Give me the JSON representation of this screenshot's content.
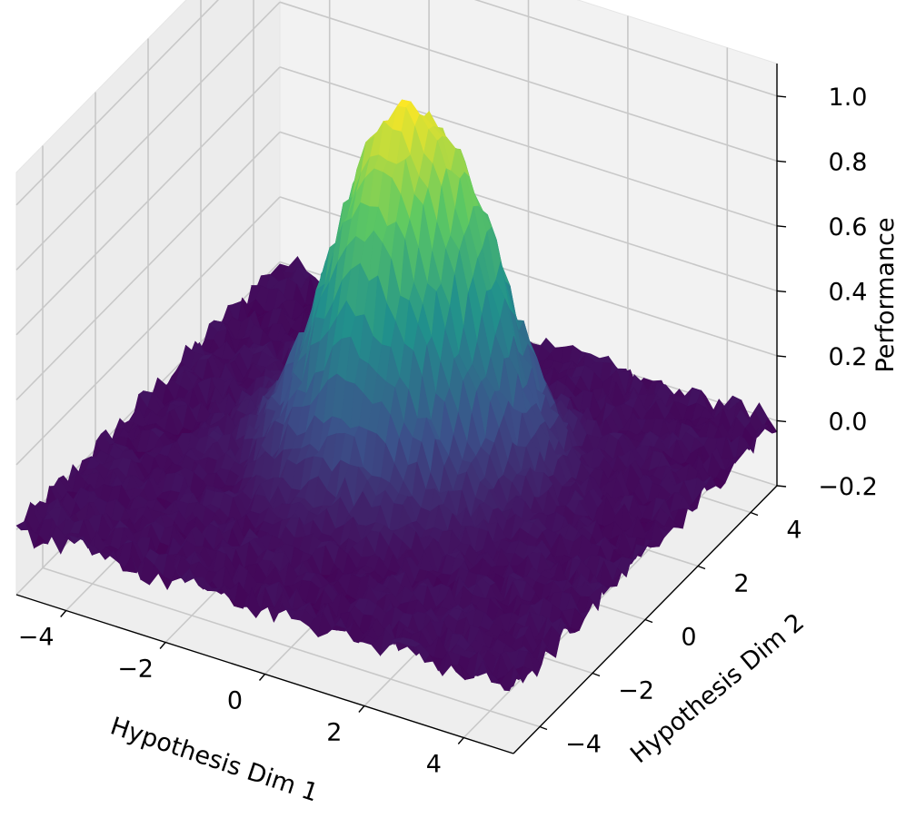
{
  "chart_data": {
    "type": "surface3d",
    "colormap": "viridis",
    "colormap_stops": [
      "#440154",
      "#3b528b",
      "#21918c",
      "#5ec962",
      "#fde725"
    ],
    "pane_color": "#f2f2f2",
    "grid": true,
    "x_axis": {
      "label": "Hypothesis Dim 1",
      "range": [
        -5,
        5
      ],
      "ticks": [
        -4,
        -2,
        0,
        2,
        4
      ],
      "tick_labels": [
        "−4",
        "−2",
        "0",
        "2",
        "4"
      ]
    },
    "y_axis": {
      "label": "Hypothesis Dim 2",
      "range": [
        -5,
        5
      ],
      "ticks": [
        -4,
        -2,
        0,
        2,
        4
      ],
      "tick_labels": [
        "−4",
        "−2",
        "0",
        "2",
        "4"
      ]
    },
    "z_axis": {
      "label": "Performance",
      "range": [
        -0.2,
        1.1
      ],
      "ticks": [
        -0.2,
        0.0,
        0.2,
        0.4,
        0.6,
        0.8,
        1.0
      ],
      "tick_labels": [
        "−0.2",
        "0.0",
        "0.2",
        "0.4",
        "0.6",
        "0.8",
        "1.0"
      ]
    },
    "surface": {
      "baseline": 0.0,
      "noise_amplitude": 0.04,
      "peaks": [
        {
          "x": -0.3,
          "y": 0.3,
          "height": 1.0,
          "sigma": 1.1
        },
        {
          "x": 1.0,
          "y": 1.3,
          "height": 0.45,
          "sigma": 0.8
        }
      ]
    }
  }
}
